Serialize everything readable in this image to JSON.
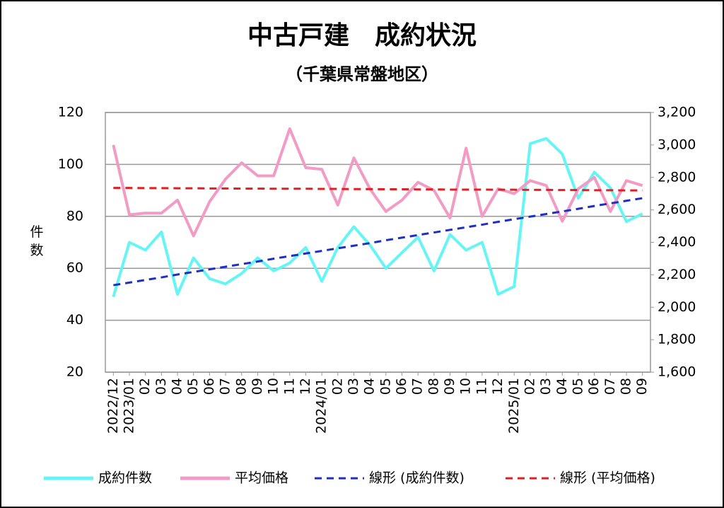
{
  "chart_data": {
    "type": "line",
    "title": "中古戸建　成約状況",
    "subtitle": "（千葉県常盤地区）",
    "ylabel": "件数",
    "categories": [
      "2022/12",
      "2023/01",
      "02",
      "03",
      "04",
      "05",
      "06",
      "07",
      "08",
      "09",
      "10",
      "11",
      "12",
      "2024/01",
      "02",
      "03",
      "04",
      "05",
      "06",
      "07",
      "08",
      "09",
      "10",
      "11",
      "12",
      "2025/01",
      "02",
      "03",
      "04",
      "05",
      "06",
      "07",
      "08",
      "09"
    ],
    "ylim": [
      20,
      120
    ],
    "yticks": [
      20,
      40,
      60,
      80,
      100,
      120
    ],
    "y2lim": [
      1600,
      3200
    ],
    "y2ticks": [
      {
        "value": 1600,
        "label": "1,600"
      },
      {
        "value": 1800,
        "label": "1,800"
      },
      {
        "value": 2000,
        "label": "2,000"
      },
      {
        "value": 2200,
        "label": "2,200"
      },
      {
        "value": 2400,
        "label": "2,400"
      },
      {
        "value": 2600,
        "label": "2,600"
      },
      {
        "value": 2800,
        "label": "2,800"
      },
      {
        "value": 3000,
        "label": "3,000"
      },
      {
        "value": 3200,
        "label": "3,200"
      }
    ],
    "grid": true,
    "legend": "bottom",
    "series": [
      {
        "name": "成約件数",
        "color": "#66f5f5",
        "style": "solid",
        "values": [
          49,
          70,
          67,
          74,
          50,
          64,
          56,
          54,
          58,
          64,
          59,
          62,
          68,
          55,
          68,
          76,
          69,
          60,
          66,
          72,
          59,
          73,
          67,
          70,
          50,
          53,
          108,
          110,
          104,
          87,
          97,
          91,
          78,
          81
        ]
      },
      {
        "name": "平均価格",
        "color": "#f29bc4",
        "style": "solid",
        "axis": "y2",
        "values": [
          3000,
          2570,
          2580,
          2580,
          2660,
          2440,
          2650,
          2790,
          2890,
          2810,
          2810,
          3100,
          2860,
          2850,
          2630,
          2920,
          2730,
          2590,
          2660,
          2770,
          2720,
          2550,
          2980,
          2560,
          2730,
          2700,
          2780,
          2750,
          2530,
          2730,
          2800,
          2590,
          2780,
          2750
        ]
      },
      {
        "name": "線形 (成約件数)",
        "color": "#1f2fc0",
        "style": "dashed",
        "values": [
          53.5,
          54.5,
          55.5,
          56.5,
          57.6,
          58.6,
          59.6,
          60.6,
          61.6,
          62.6,
          63.7,
          64.7,
          65.7,
          66.7,
          67.7,
          68.7,
          69.7,
          70.8,
          71.8,
          72.8,
          73.8,
          74.8,
          75.8,
          76.8,
          77.9,
          78.9,
          79.9,
          80.9,
          81.9,
          82.9,
          84.0,
          85.0,
          86.0,
          87.0
        ]
      },
      {
        "name": "線形 (平均価格)",
        "color": "#e02020",
        "style": "dashed",
        "axis": "y2",
        "values": [
          2735,
          2735,
          2734,
          2734,
          2733,
          2733,
          2732,
          2732,
          2731,
          2731,
          2730,
          2730,
          2730,
          2729,
          2729,
          2728,
          2728,
          2727,
          2727,
          2726,
          2726,
          2725,
          2725,
          2725,
          2724,
          2724,
          2723,
          2723,
          2722,
          2722,
          2721,
          2721,
          2720,
          2720
        ]
      }
    ]
  }
}
